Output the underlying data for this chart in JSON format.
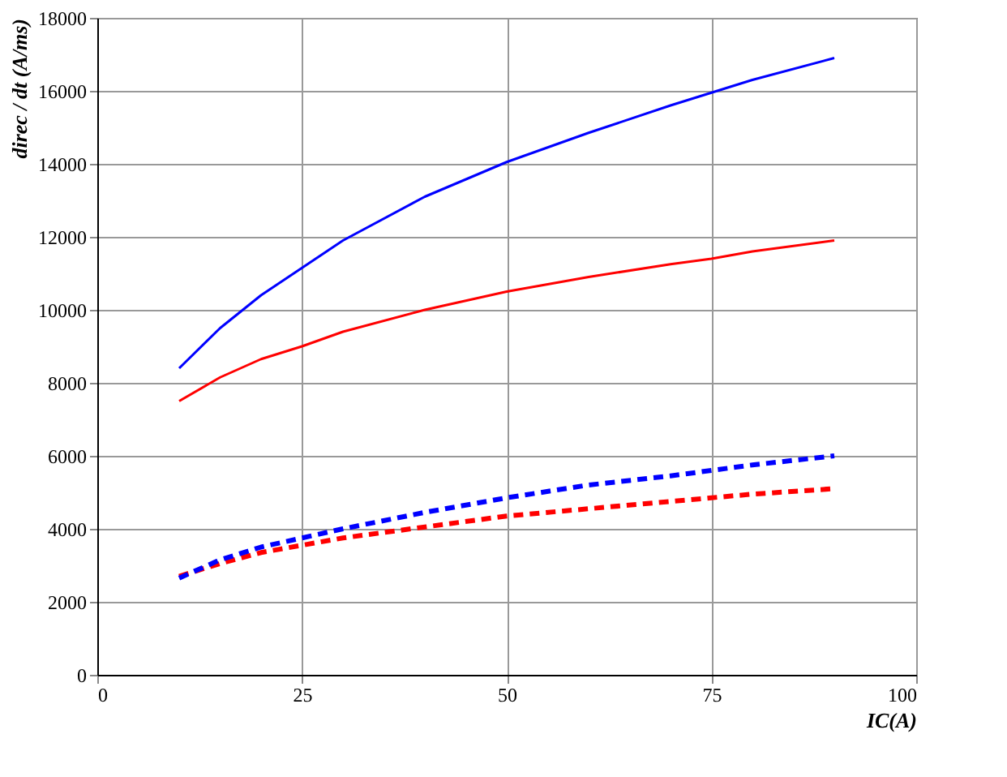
{
  "chart_data": {
    "type": "line",
    "xlabel": "IC(A)",
    "ylabel": "direc / dt (A/ms)",
    "x": [
      10,
      15,
      20,
      25,
      30,
      40,
      50,
      60,
      70,
      75,
      80,
      90
    ],
    "series": [
      {
        "color": "#ff0000",
        "line_style": "solid",
        "values": [
          7500,
          8150,
          8650,
          9000,
          9400,
          10000,
          10500,
          10900,
          11250,
          11400,
          11600,
          11900
        ]
      },
      {
        "color": "#0000ff",
        "line_style": "solid",
        "values": [
          8400,
          9500,
          10400,
          11150,
          11900,
          13100,
          14050,
          14850,
          15600,
          15950,
          16300,
          16900
        ]
      },
      {
        "color": "#ff0000",
        "line_style": "dashed",
        "values": [
          2700,
          3050,
          3350,
          3550,
          3750,
          4050,
          4350,
          4550,
          4750,
          4850,
          4950,
          5100
        ]
      },
      {
        "color": "#0000ff",
        "line_style": "dashed",
        "values": [
          2650,
          3150,
          3500,
          3750,
          4000,
          4450,
          4850,
          5200,
          5450,
          5600,
          5750,
          6000
        ]
      }
    ],
    "xlim": [
      0,
      100
    ],
    "xticks": [
      0,
      25,
      50,
      75,
      100
    ],
    "ylim": [
      0,
      18000
    ],
    "yticks": [
      0,
      2000,
      4000,
      6000,
      8000,
      10000,
      12000,
      14000,
      16000,
      18000
    ],
    "grid": true,
    "marker": "none"
  }
}
